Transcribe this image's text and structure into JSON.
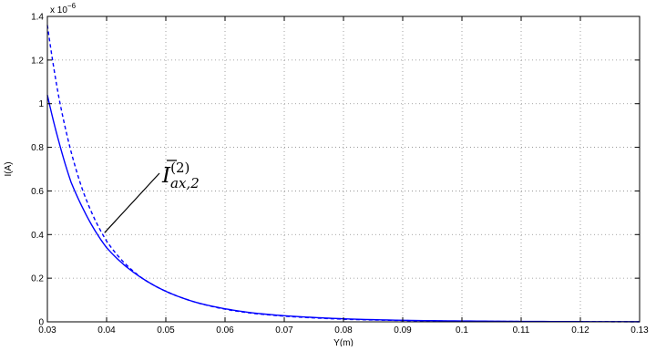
{
  "chart_data": {
    "type": "line",
    "title": "",
    "xlabel": "Y(m)",
    "ylabel": "I(A)",
    "y_exponent_label": "x 10",
    "y_exponent_power": "−6",
    "xlim": [
      0.03,
      0.13
    ],
    "ylim": [
      0,
      1.4
    ],
    "grid": true,
    "x_ticks": [
      "0.03",
      "0.04",
      "0.05",
      "0.06",
      "0.07",
      "0.08",
      "0.09",
      "0.1",
      "0.11",
      "0.12",
      "0.13"
    ],
    "y_ticks": [
      "0",
      "0.2",
      "0.4",
      "0.6",
      "0.8",
      "1",
      "1.2",
      "1.4"
    ],
    "series": [
      {
        "style": "solid",
        "color": "#0000ff",
        "x": [
          0.03,
          0.032,
          0.034,
          0.036,
          0.038,
          0.04,
          0.043,
          0.046,
          0.05,
          0.055,
          0.06,
          0.065,
          0.07,
          0.075,
          0.08,
          0.09,
          0.1,
          0.11,
          0.12,
          0.13
        ],
        "y": [
          1.04,
          0.82,
          0.64,
          0.52,
          0.42,
          0.34,
          0.26,
          0.2,
          0.14,
          0.09,
          0.06,
          0.04,
          0.028,
          0.02,
          0.014,
          0.007,
          0.004,
          0.002,
          0.001,
          0.0005
        ]
      },
      {
        "style": "dashed",
        "color": "#0000ff",
        "x": [
          0.03,
          0.032,
          0.034,
          0.036,
          0.038,
          0.04,
          0.043,
          0.046,
          0.05,
          0.055,
          0.06,
          0.065,
          0.07,
          0.075,
          0.08,
          0.09,
          0.1,
          0.11,
          0.12,
          0.13
        ],
        "y": [
          1.36,
          1.02,
          0.78,
          0.6,
          0.47,
          0.37,
          0.27,
          0.2,
          0.14,
          0.09,
          0.058,
          0.038,
          0.026,
          0.018,
          0.012,
          0.006,
          0.003,
          0.0015,
          0.0008,
          0.0004
        ]
      }
    ],
    "annotations": [
      {
        "base": "I",
        "superscript": "(2)",
        "subscript": "ax,2",
        "points_to": [
          0.0395,
          0.4
        ]
      }
    ]
  }
}
